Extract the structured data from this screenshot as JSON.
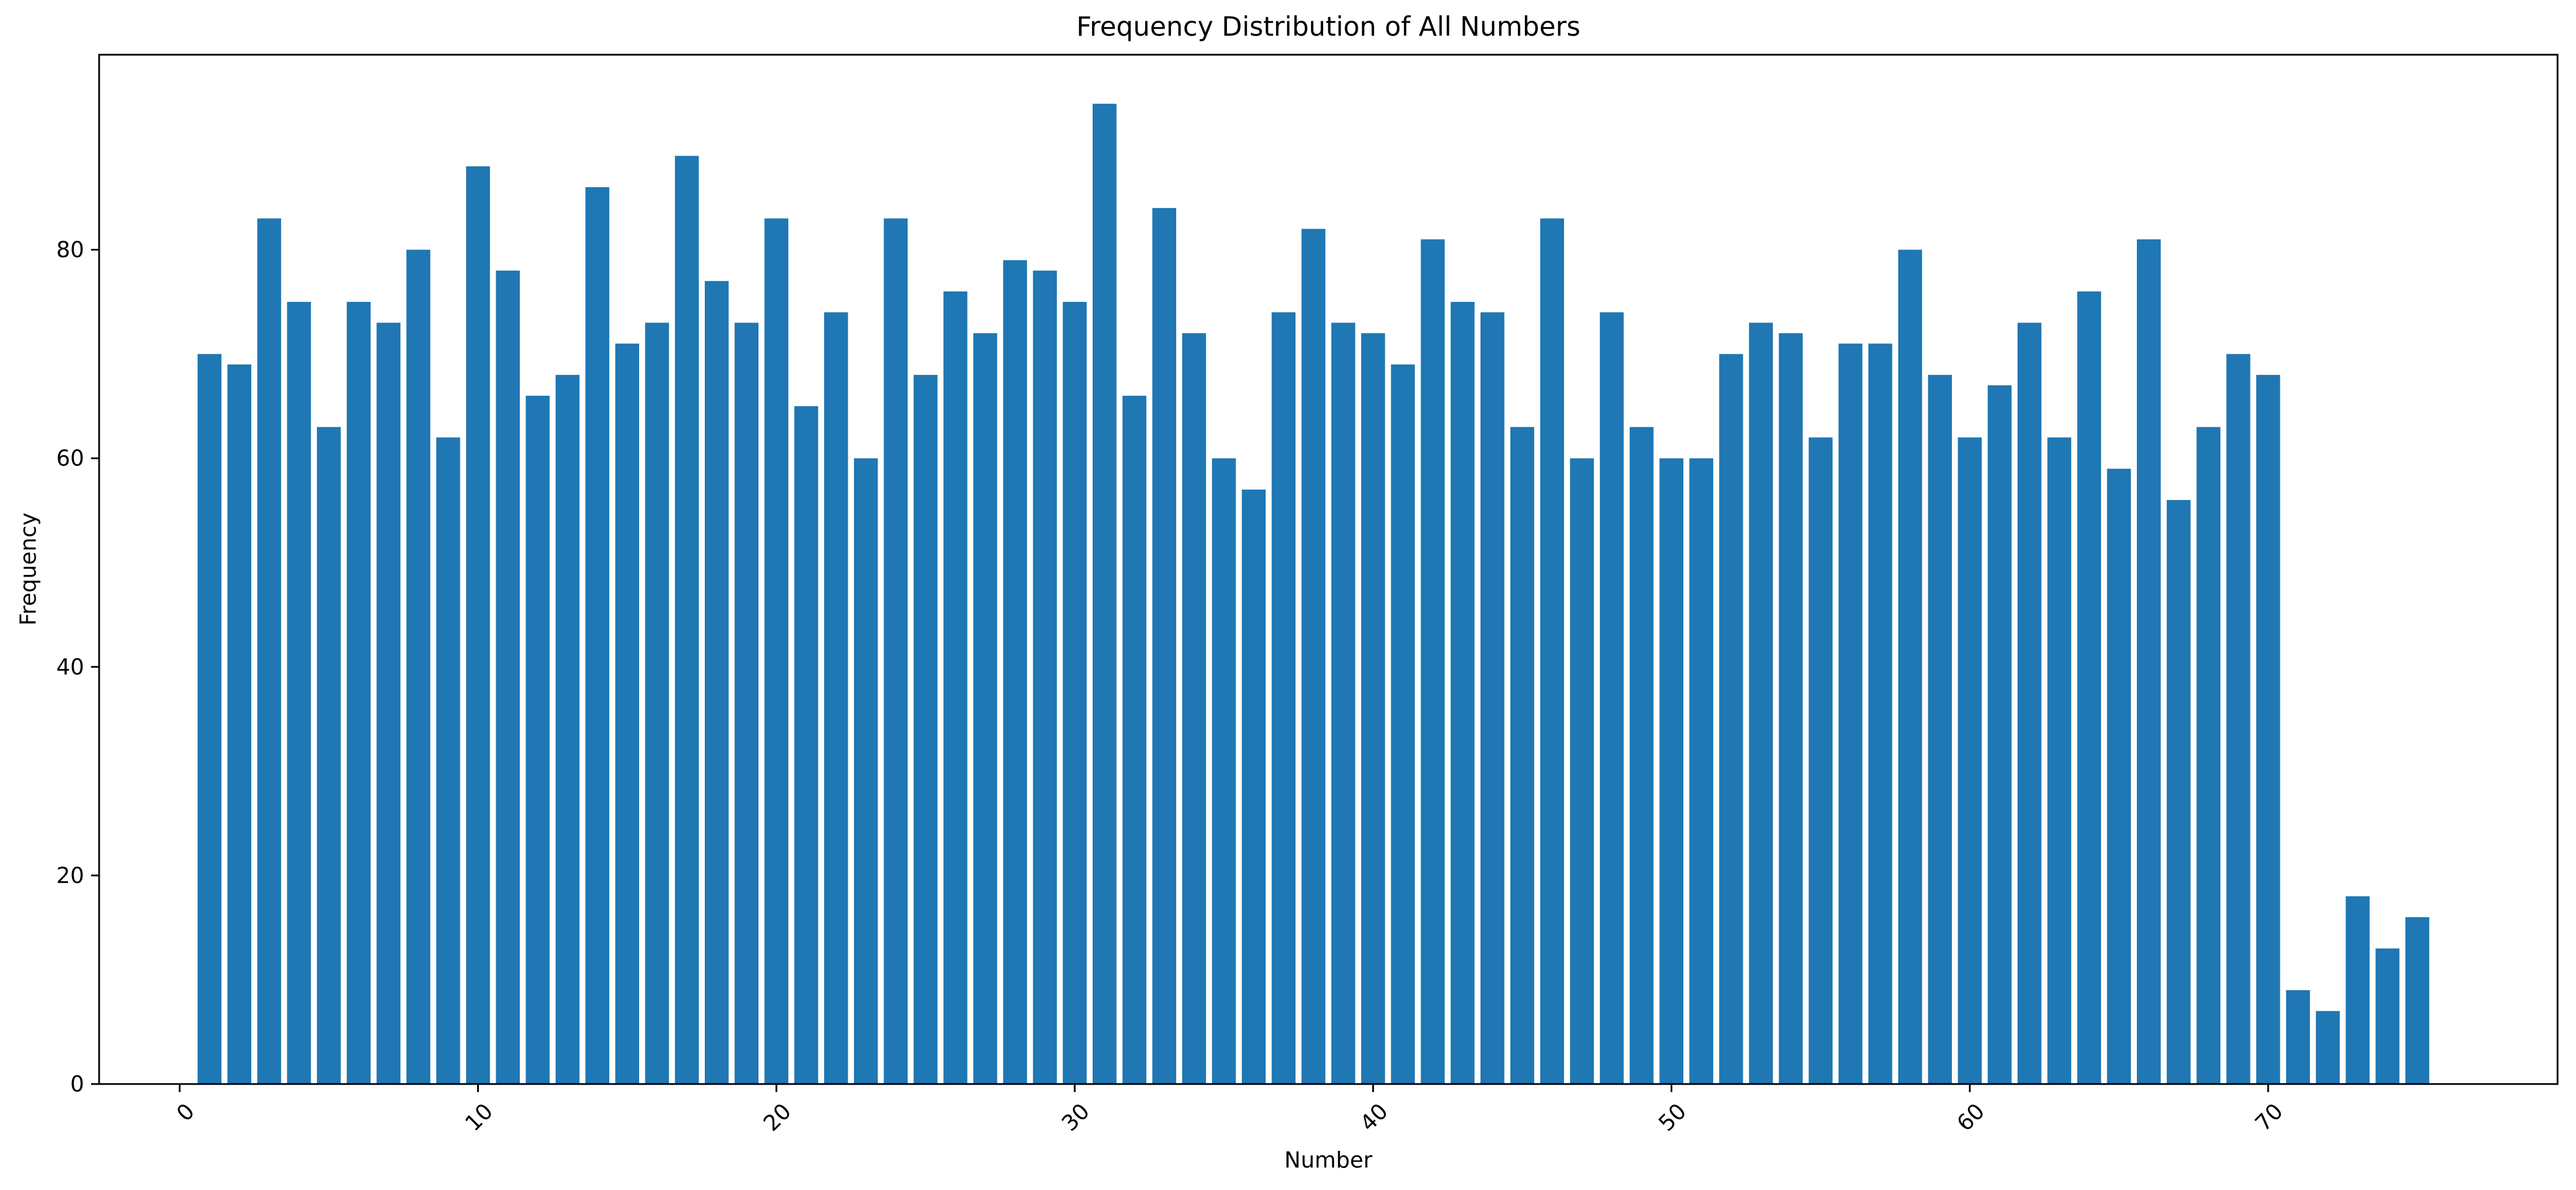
{
  "chart_data": {
    "type": "bar",
    "title": "Frequency Distribution of All Numbers",
    "xlabel": "Number",
    "ylabel": "Frequency",
    "x": [
      1,
      2,
      3,
      4,
      5,
      6,
      7,
      8,
      9,
      10,
      11,
      12,
      13,
      14,
      15,
      16,
      17,
      18,
      19,
      20,
      21,
      22,
      23,
      24,
      25,
      26,
      27,
      28,
      29,
      30,
      31,
      32,
      33,
      34,
      35,
      36,
      37,
      38,
      39,
      40,
      41,
      42,
      43,
      44,
      45,
      46,
      47,
      48,
      49,
      50,
      51,
      52,
      53,
      54,
      55,
      56,
      57,
      58,
      59,
      60,
      61,
      62,
      63,
      64,
      65,
      66,
      67,
      68,
      69,
      70,
      71,
      72,
      73,
      74,
      75
    ],
    "values": [
      70,
      69,
      83,
      75,
      63,
      75,
      73,
      80,
      62,
      88,
      78,
      66,
      68,
      86,
      71,
      73,
      89,
      77,
      73,
      83,
      65,
      74,
      60,
      83,
      68,
      76,
      72,
      79,
      78,
      75,
      94,
      66,
      84,
      72,
      60,
      57,
      74,
      82,
      73,
      72,
      69,
      81,
      75,
      74,
      63,
      83,
      60,
      74,
      63,
      60,
      60,
      70,
      73,
      72,
      62,
      71,
      71,
      80,
      68,
      62,
      67,
      73,
      62,
      76,
      59,
      81,
      56,
      63,
      70,
      68,
      9,
      7,
      18,
      13,
      16
    ],
    "xlim": [
      -2.7,
      79.7
    ],
    "ylim": [
      0,
      98.7
    ],
    "xticks": [
      0,
      10,
      20,
      30,
      40,
      50,
      60,
      70
    ],
    "xtick_labels": [
      "0",
      "10",
      "20",
      "30",
      "40",
      "50",
      "60",
      "70"
    ],
    "yticks": [
      0,
      20,
      40,
      60,
      80
    ],
    "ytick_labels": [
      "0",
      "20",
      "40",
      "60",
      "80"
    ],
    "xtick_rotation_deg": 45,
    "grid": false,
    "legend": "none",
    "bar_color": "#1f77b4"
  }
}
